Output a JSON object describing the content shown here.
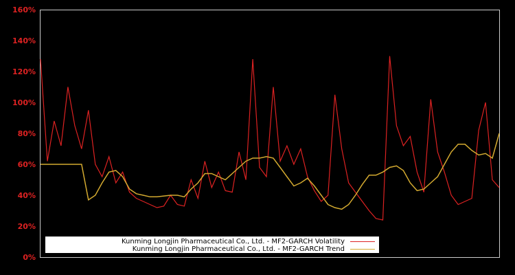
{
  "chart_data": {
    "type": "line",
    "title": "",
    "xlabel": "",
    "ylabel": "",
    "ylim": [
      0,
      160
    ],
    "y_ticks": [
      "0%",
      "20%",
      "40%",
      "60%",
      "80%",
      "100%",
      "120%",
      "140%",
      "160%"
    ],
    "grid": false,
    "legend_position": "bottom-left inside",
    "x_index_count": 68,
    "series": [
      {
        "name": "Kunming Longjin Pharmaceutical Co., Ltd. - MF2-GARCH Volatility",
        "color": "#dd2222",
        "values": [
          128,
          62,
          88,
          72,
          110,
          85,
          70,
          95,
          60,
          52,
          65,
          48,
          55,
          42,
          38,
          36,
          34,
          32,
          33,
          40,
          34,
          33,
          50,
          38,
          62,
          45,
          55,
          43,
          42,
          68,
          50,
          128,
          58,
          52,
          110,
          62,
          72,
          60,
          70,
          52,
          43,
          36,
          40,
          105,
          70,
          48,
          42,
          36,
          30,
          25,
          24,
          130,
          85,
          72,
          78,
          55,
          42,
          102,
          68,
          55,
          40,
          34,
          36,
          38,
          82,
          100,
          50,
          45
        ]
      },
      {
        "name": "Kunming Longjin Pharmaceutical Co., Ltd. - MF2-GARCH Trend",
        "color": "#d4aa30",
        "values": [
          60,
          60,
          60,
          60,
          60,
          60,
          60,
          37,
          40,
          48,
          55,
          56,
          52,
          44,
          41,
          40,
          39,
          39,
          39.5,
          40,
          40,
          39,
          44,
          48,
          54,
          54,
          52,
          50,
          54,
          58,
          62,
          64,
          64,
          65,
          64,
          58,
          52,
          46,
          48,
          51,
          46,
          40,
          34,
          32,
          31,
          34,
          40,
          47,
          53,
          53,
          55,
          58,
          59,
          56,
          48,
          43,
          44,
          48,
          52,
          60,
          68,
          73,
          73,
          69,
          66,
          67,
          64,
          80
        ]
      }
    ]
  },
  "legend": {
    "volatility_label": "Kunming Longjin Pharmaceutical Co., Ltd. - MF2-GARCH Volatility",
    "trend_label": "Kunming Longjin Pharmaceutical Co., Ltd. - MF2-GARCH Trend"
  },
  "colors": {
    "background": "#000000",
    "axis": "#cccccc",
    "tick_label": "#dd2222",
    "volatility": "#dd2222",
    "trend": "#d4aa30"
  }
}
